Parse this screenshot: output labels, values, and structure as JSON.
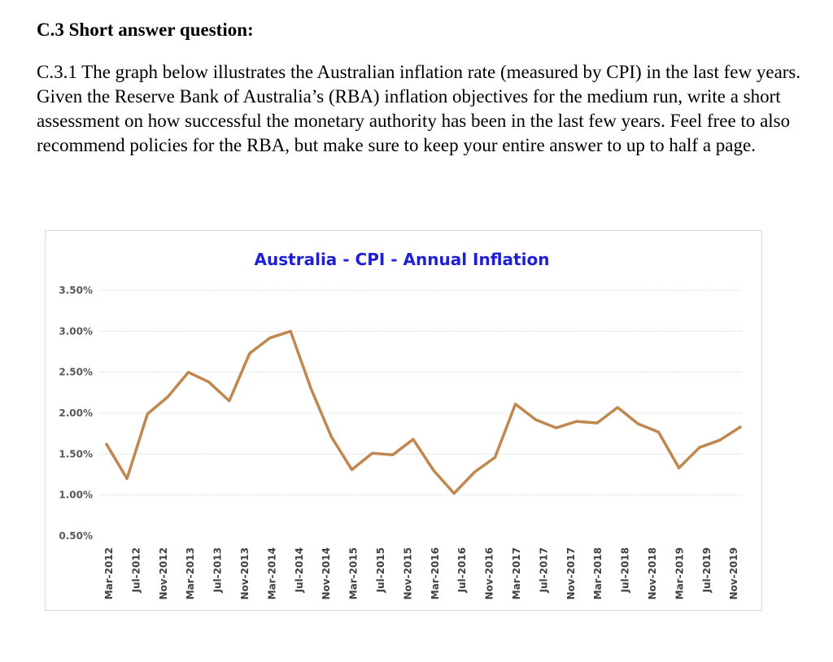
{
  "heading": "C.3 Short answer question:",
  "question_text": "C.3.1 The graph below illustrates the Australian inflation rate (measured by CPI) in the last few years. Given the Reserve Bank of Australia’s (RBA) inflation objectives for the medium run, write a short assessment on how successful the monetary authority has been in the last few years. Feel free to also recommend policies for the RBA, but make sure to keep your entire answer to up to half a page.",
  "chart_data": {
    "type": "line",
    "title": "Australia - CPI - Annual Inflation",
    "xlabel": "",
    "ylabel": "",
    "ylim": [
      0.5,
      3.5
    ],
    "yticks": [
      "3.50%",
      "3.00%",
      "2.50%",
      "2.00%",
      "1.50%",
      "1.00%",
      "0.50%"
    ],
    "ytick_values": [
      3.5,
      3.0,
      2.5,
      2.0,
      1.5,
      1.0,
      0.5
    ],
    "xtick_labels": [
      "Mar-2012",
      "Jul-2012",
      "Nov-2012",
      "Mar-2013",
      "Jul-2013",
      "Nov-2013",
      "Mar-2014",
      "Jul-2014",
      "Nov-2014",
      "Mar-2015",
      "Jul-2015",
      "Nov-2015",
      "Mar-2016",
      "Jul-2016",
      "Nov-2016",
      "Mar-2017",
      "Jul-2017",
      "Nov-2017",
      "Mar-2018",
      "Jul-2018",
      "Nov-2018",
      "Mar-2019",
      "Jul-2019",
      "Nov-2019"
    ],
    "grid": true,
    "series": [
      {
        "name": "Annual CPI inflation",
        "color": "#c0874e",
        "values": [
          1.62,
          1.2,
          1.99,
          2.2,
          2.5,
          2.38,
          2.15,
          2.73,
          2.92,
          3.0,
          2.3,
          1.71,
          1.31,
          1.51,
          1.49,
          1.68,
          1.3,
          1.02,
          1.28,
          1.46,
          2.11,
          1.92,
          1.82,
          1.9,
          1.88,
          2.07,
          1.87,
          1.77,
          1.33,
          1.58,
          1.67,
          1.83
        ]
      }
    ]
  }
}
